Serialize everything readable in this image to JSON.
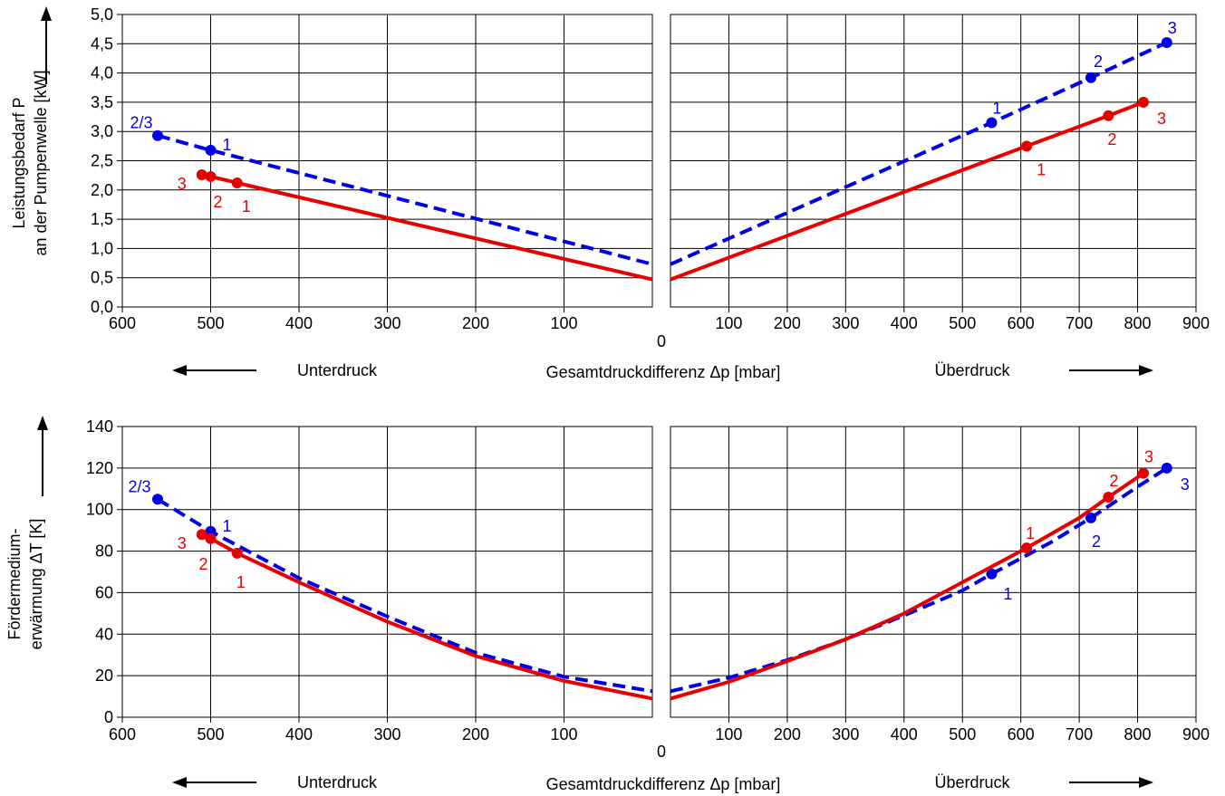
{
  "chart_data": [
    {
      "type": "line",
      "ylabel_lines": [
        "Leistungsbedarf P",
        "an der Pumpenwelle [kW]"
      ],
      "ylim": [
        0,
        5
      ],
      "yticks": [
        0,
        0.5,
        1,
        1.5,
        2,
        2.5,
        3,
        3.5,
        4,
        4.5,
        5
      ],
      "ytick_labels": [
        "0,0",
        "0,5",
        "1,0",
        "1,5",
        "2,0",
        "2,5",
        "3,0",
        "3,5",
        "4,0",
        "4,5",
        "5,0"
      ],
      "xlabel": "Gesamtdruckdifferenz Δp [mbar]",
      "left_label": "Unterdruck",
      "right_label": "Überdruck",
      "zero_label": "0",
      "left_panel": {
        "xlim": [
          600,
          0
        ],
        "xticks": [
          600,
          500,
          400,
          300,
          200,
          100
        ],
        "series": [
          {
            "color": "#0000e6",
            "dashed": true,
            "points": [
              [
                560,
                2.93
              ],
              [
                500,
                2.68
              ],
              [
                0,
                0.73
              ]
            ],
            "markers": [
              [
                560,
                2.93,
                "2/3"
              ],
              [
                500,
                2.68,
                "1"
              ]
            ]
          },
          {
            "color": "#e60000",
            "dashed": false,
            "points": [
              [
                510,
                2.26
              ],
              [
                500,
                2.23
              ],
              [
                470,
                2.12
              ],
              [
                0,
                0.47
              ]
            ],
            "markers": [
              [
                510,
                2.26,
                "3"
              ],
              [
                500,
                2.23,
                "2"
              ],
              [
                470,
                2.12,
                "1"
              ]
            ]
          }
        ]
      },
      "right_panel": {
        "xlim": [
          0,
          900
        ],
        "xticks": [
          100,
          200,
          300,
          400,
          500,
          600,
          700,
          800,
          900
        ],
        "series": [
          {
            "color": "#0000e6",
            "dashed": true,
            "points": [
              [
                0,
                0.73
              ],
              [
                550,
                3.15
              ],
              [
                720,
                3.92
              ],
              [
                850,
                4.52
              ]
            ],
            "markers": [
              [
                550,
                3.15,
                "1"
              ],
              [
                720,
                3.92,
                "2"
              ],
              [
                850,
                4.52,
                "3"
              ]
            ]
          },
          {
            "color": "#e60000",
            "dashed": false,
            "points": [
              [
                0,
                0.47
              ],
              [
                610,
                2.75
              ],
              [
                750,
                3.27
              ],
              [
                810,
                3.5
              ]
            ],
            "markers": [
              [
                610,
                2.75,
                "1"
              ],
              [
                750,
                3.27,
                "2"
              ],
              [
                810,
                3.5,
                "3"
              ]
            ]
          }
        ]
      }
    },
    {
      "type": "line",
      "ylabel_lines": [
        "Fördermedium-",
        "erwärmung ΔT [K]"
      ],
      "ylim": [
        0,
        140
      ],
      "yticks": [
        0,
        20,
        40,
        60,
        80,
        100,
        120,
        140
      ],
      "ytick_labels": [
        "0",
        "20",
        "40",
        "60",
        "80",
        "100",
        "120",
        "140"
      ],
      "xlabel": "Gesamtdruckdifferenz Δp [mbar]",
      "left_label": "Unterdruck",
      "right_label": "Überdruck",
      "zero_label": "0",
      "left_panel": {
        "xlim": [
          600,
          0
        ],
        "xticks": [
          600,
          500,
          400,
          300,
          200,
          100
        ],
        "series": [
          {
            "color": "#0000e6",
            "dashed": true,
            "points": [
              [
                560,
                105
              ],
              [
                500,
                89.5
              ],
              [
                400,
                67
              ],
              [
                300,
                48.5
              ],
              [
                200,
                31
              ],
              [
                100,
                19.5
              ],
              [
                0,
                12.5
              ]
            ],
            "markers": [
              [
                560,
                105,
                "2/3"
              ],
              [
                500,
                89.5,
                "1"
              ]
            ]
          },
          {
            "color": "#e60000",
            "dashed": false,
            "points": [
              [
                510,
                88
              ],
              [
                500,
                86
              ],
              [
                470,
                79
              ],
              [
                400,
                65
              ],
              [
                300,
                46
              ],
              [
                200,
                29.5
              ],
              [
                100,
                17.5
              ],
              [
                0,
                9
              ]
            ],
            "markers": [
              [
                510,
                88,
                "3"
              ],
              [
                500,
                86,
                "2"
              ],
              [
                470,
                79,
                "1"
              ]
            ]
          }
        ]
      },
      "right_panel": {
        "xlim": [
          0,
          900
        ],
        "xticks": [
          100,
          200,
          300,
          400,
          500,
          600,
          700,
          800,
          900
        ],
        "series": [
          {
            "color": "#0000e6",
            "dashed": true,
            "points": [
              [
                0,
                12.5
              ],
              [
                100,
                19
              ],
              [
                200,
                27.5
              ],
              [
                300,
                37.5
              ],
              [
                400,
                49
              ],
              [
                500,
                61
              ],
              [
                550,
                69
              ],
              [
                650,
                84
              ],
              [
                720,
                96
              ],
              [
                800,
                111
              ],
              [
                850,
                120
              ]
            ],
            "markers": [
              [
                550,
                69,
                "1"
              ],
              [
                720,
                96,
                "2"
              ],
              [
                850,
                120,
                "3"
              ]
            ]
          },
          {
            "color": "#e60000",
            "dashed": false,
            "points": [
              [
                0,
                9
              ],
              [
                100,
                17
              ],
              [
                200,
                27
              ],
              [
                300,
                37.5
              ],
              [
                400,
                50
              ],
              [
                500,
                65
              ],
              [
                610,
                81.5
              ],
              [
                700,
                96
              ],
              [
                750,
                106
              ],
              [
                810,
                117.5
              ]
            ],
            "markers": [
              [
                610,
                81.5,
                "1"
              ],
              [
                750,
                106,
                "2"
              ],
              [
                810,
                117.5,
                "3"
              ]
            ]
          }
        ]
      }
    }
  ]
}
